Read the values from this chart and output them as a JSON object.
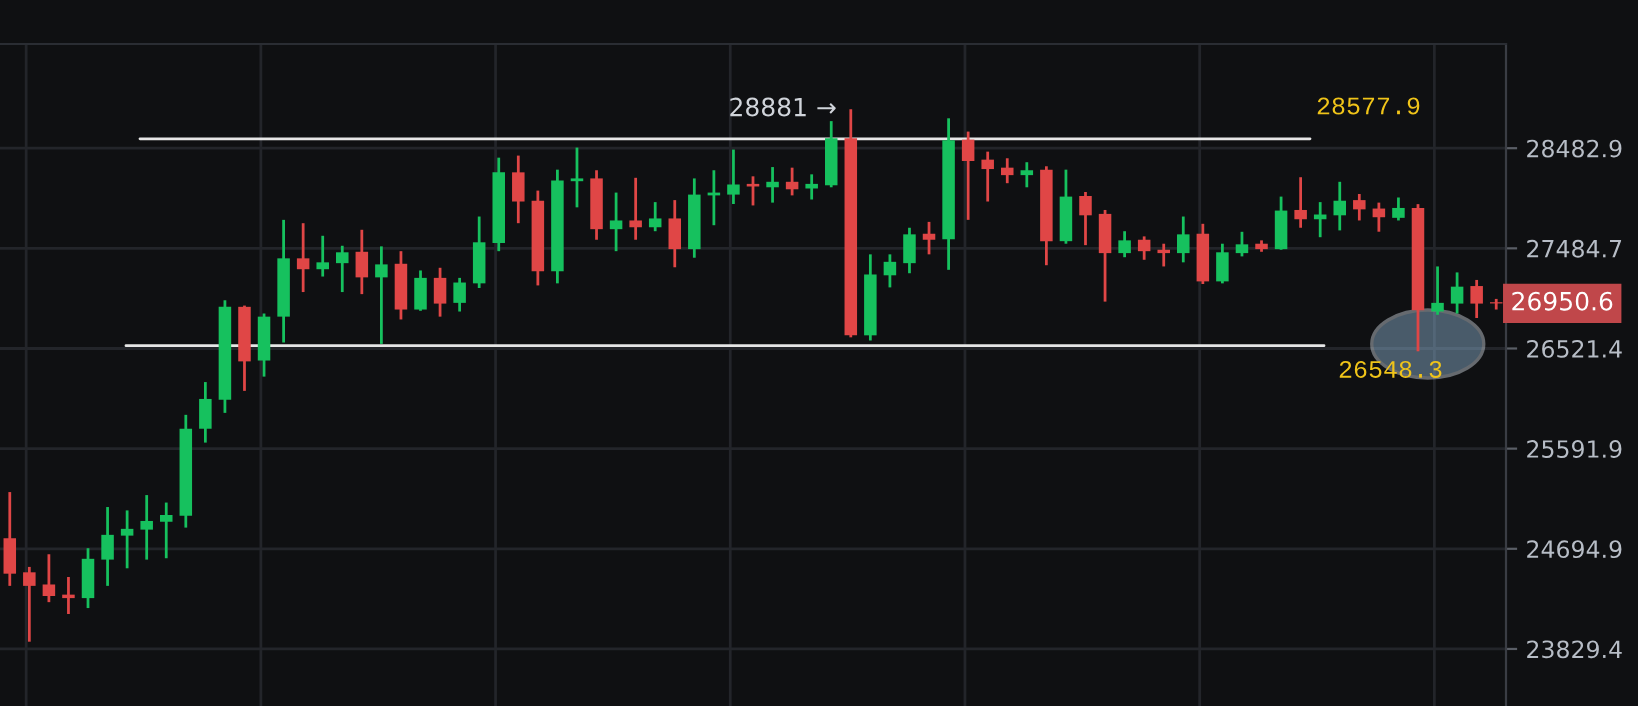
{
  "chart_data": {
    "type": "candlestick",
    "log": true,
    "grid": true,
    "tick_labels": "y",
    "categories": [
      null,
      null,
      null,
      null,
      null,
      null,
      null,
      null,
      null,
      null,
      null,
      null,
      null,
      null,
      null,
      null,
      null,
      null,
      null,
      null,
      null,
      null,
      null,
      null,
      null,
      null,
      null,
      null,
      null,
      null,
      null,
      null,
      null,
      null,
      null,
      null,
      null,
      null,
      null,
      null,
      null,
      null,
      null,
      null,
      null,
      null,
      null,
      null,
      null,
      null,
      null,
      null,
      null,
      null,
      null,
      null,
      null,
      null,
      null,
      null,
      null,
      null,
      null,
      null,
      null,
      null,
      null,
      null,
      null,
      null,
      null,
      null,
      null,
      null,
      null,
      null,
      null
    ],
    "ohlc": [
      [
        24788,
        25199,
        24371,
        24477
      ],
      [
        24489,
        24536,
        23891,
        24371
      ],
      [
        24383,
        24647,
        24230,
        24283
      ],
      [
        24295,
        24448,
        24128,
        24265
      ],
      [
        24265,
        24700,
        24179,
        24607
      ],
      [
        24600,
        25065,
        24371,
        24818
      ],
      [
        24811,
        25035,
        24524,
        24871
      ],
      [
        24864,
        25172,
        24600,
        24941
      ],
      [
        24934,
        25105,
        24612,
        24994
      ],
      [
        24987,
        25902,
        24882,
        25774
      ],
      [
        25774,
        26206,
        25647,
        26049
      ],
      [
        26041,
        26981,
        25920,
        26918
      ],
      [
        26918,
        26930,
        26124,
        26400
      ],
      [
        26408,
        26854,
        26257,
        26824
      ],
      [
        26824,
        27765,
        26578,
        27387
      ],
      [
        27387,
        27732,
        27060,
        27281
      ],
      [
        27281,
        27608,
        27210,
        27348
      ],
      [
        27340,
        27510,
        27060,
        27446
      ],
      [
        27451,
        27667,
        27040,
        27202
      ],
      [
        27202,
        27504,
        26565,
        27328
      ],
      [
        27334,
        27457,
        26797,
        26892
      ],
      [
        26892,
        27269,
        26880,
        27197
      ],
      [
        27197,
        27295,
        26824,
        26949
      ],
      [
        26956,
        27197,
        26873,
        27152
      ],
      [
        27144,
        27798,
        27099,
        27544
      ],
      [
        27536,
        28387,
        27457,
        28239
      ],
      [
        28239,
        28408,
        27732,
        27947
      ],
      [
        27955,
        28056,
        27124,
        27261
      ],
      [
        27261,
        28266,
        27144,
        28158
      ],
      [
        28150,
        28489,
        27889,
        28178
      ],
      [
        28178,
        28260,
        27569,
        27673
      ],
      [
        27673,
        28036,
        27457,
        27759
      ],
      [
        27759,
        28184,
        27569,
        27692
      ],
      [
        27692,
        27941,
        27653,
        27779
      ],
      [
        27779,
        27961,
        27300,
        27477
      ],
      [
        27477,
        28178,
        27393,
        28016
      ],
      [
        28008,
        28260,
        27712,
        28036
      ],
      [
        28016,
        28469,
        27922,
        28117
      ],
      [
        28123,
        28199,
        27908,
        28097
      ],
      [
        28089,
        28292,
        27936,
        28144
      ],
      [
        28144,
        28286,
        28008,
        28069
      ],
      [
        28077,
        28219,
        27967,
        28123
      ],
      [
        28109,
        28759,
        28089,
        28584
      ],
      [
        28584,
        28881,
        26627,
        26646
      ],
      [
        26646,
        27426,
        26597,
        27230
      ],
      [
        27222,
        27426,
        27105,
        27353
      ],
      [
        27340,
        27687,
        27242,
        27622
      ],
      [
        27628,
        27745,
        27426,
        27569
      ],
      [
        27575,
        28788,
        27275,
        28564
      ],
      [
        28570,
        28652,
        27765,
        28353
      ],
      [
        28367,
        28448,
        27947,
        28272
      ],
      [
        28286,
        28381,
        28130,
        28211
      ],
      [
        28211,
        28341,
        28089,
        28260
      ],
      [
        28266,
        28300,
        27320,
        27555
      ],
      [
        27555,
        28266,
        27530,
        27996
      ],
      [
        28002,
        28042,
        27516,
        27810
      ],
      [
        27824,
        27863,
        26968,
        27438
      ],
      [
        27438,
        27653,
        27398,
        27563
      ],
      [
        27569,
        27602,
        27373,
        27457
      ],
      [
        27471,
        27530,
        27308,
        27438
      ],
      [
        27438,
        27798,
        27348,
        27622
      ],
      [
        27628,
        27726,
        27138,
        27163
      ],
      [
        27163,
        27530,
        27144,
        27446
      ],
      [
        27438,
        27647,
        27406,
        27524
      ],
      [
        27530,
        27563,
        27451,
        27477
      ],
      [
        27477,
        27996,
        27471,
        27857
      ],
      [
        27863,
        28190,
        27687,
        27771
      ],
      [
        27771,
        27941,
        27594,
        27818
      ],
      [
        27810,
        28144,
        27661,
        27955
      ],
      [
        27961,
        28022,
        27759,
        27869
      ],
      [
        27877,
        27936,
        27648,
        27791
      ],
      [
        27785,
        27987,
        27759,
        27883
      ],
      [
        27883,
        27921,
        26495,
        26886
      ],
      [
        26873,
        27308,
        26842,
        26956
      ],
      [
        26949,
        27250,
        26854,
        27112
      ],
      [
        27118,
        27177,
        26811,
        26949
      ],
      [
        26962,
        26994,
        26892,
        26950.6
      ]
    ],
    "colors": [
      "#e04646",
      "#e04646",
      "#e04646",
      "#e04646",
      "#16c15e",
      "#16c15e",
      "#16c15e",
      "#16c15e",
      "#16c15e",
      "#16c15e",
      "#16c15e",
      "#16c15e",
      "#e04646",
      "#16c15e",
      "#16c15e",
      "#e04646",
      "#16c15e",
      "#16c15e",
      "#e04646",
      "#16c15e",
      "#e04646",
      "#16c15e",
      "#e04646",
      "#16c15e",
      "#16c15e",
      "#16c15e",
      "#e04646",
      "#e04646",
      "#16c15e",
      "#16c15e",
      "#e04646",
      "#16c15e",
      "#e04646",
      "#16c15e",
      "#e04646",
      "#16c15e",
      "#16c15e",
      "#16c15e",
      "#e04646",
      "#16c15e",
      "#e04646",
      "#16c15e",
      "#16c15e",
      "#e04646",
      "#16c15e",
      "#16c15e",
      "#16c15e",
      "#e04646",
      "#16c15e",
      "#e04646",
      "#e04646",
      "#e04646",
      "#16c15e",
      "#e04646",
      "#16c15e",
      "#e04646",
      "#e04646",
      "#16c15e",
      "#e04646",
      "#e04646",
      "#16c15e",
      "#e04646",
      "#16c15e",
      "#16c15e",
      "#e04646",
      "#16c15e",
      "#e04646",
      "#16c15e",
      "#16c15e",
      "#e04646",
      "#e04646",
      "#16c15e",
      "#e04646",
      "#16c15e",
      "#16c15e",
      "#e04646",
      "#e04646"
    ],
    "ylim": [
      23350,
      29560
    ],
    "yticks": [
      23829.4,
      24694.9,
      25591.9,
      26521.4,
      27484.7,
      28482.9
    ],
    "ref_lines": [
      {
        "axis": "y",
        "value": 28577.9,
        "label": "28577.9",
        "color": "#e6e6e6"
      },
      {
        "axis": "y",
        "value": 26548.3,
        "label": "26548.3",
        "color": "#e6e6e6"
      }
    ],
    "annotations": [
      "28881 →",
      "26950.6"
    ]
  }
}
